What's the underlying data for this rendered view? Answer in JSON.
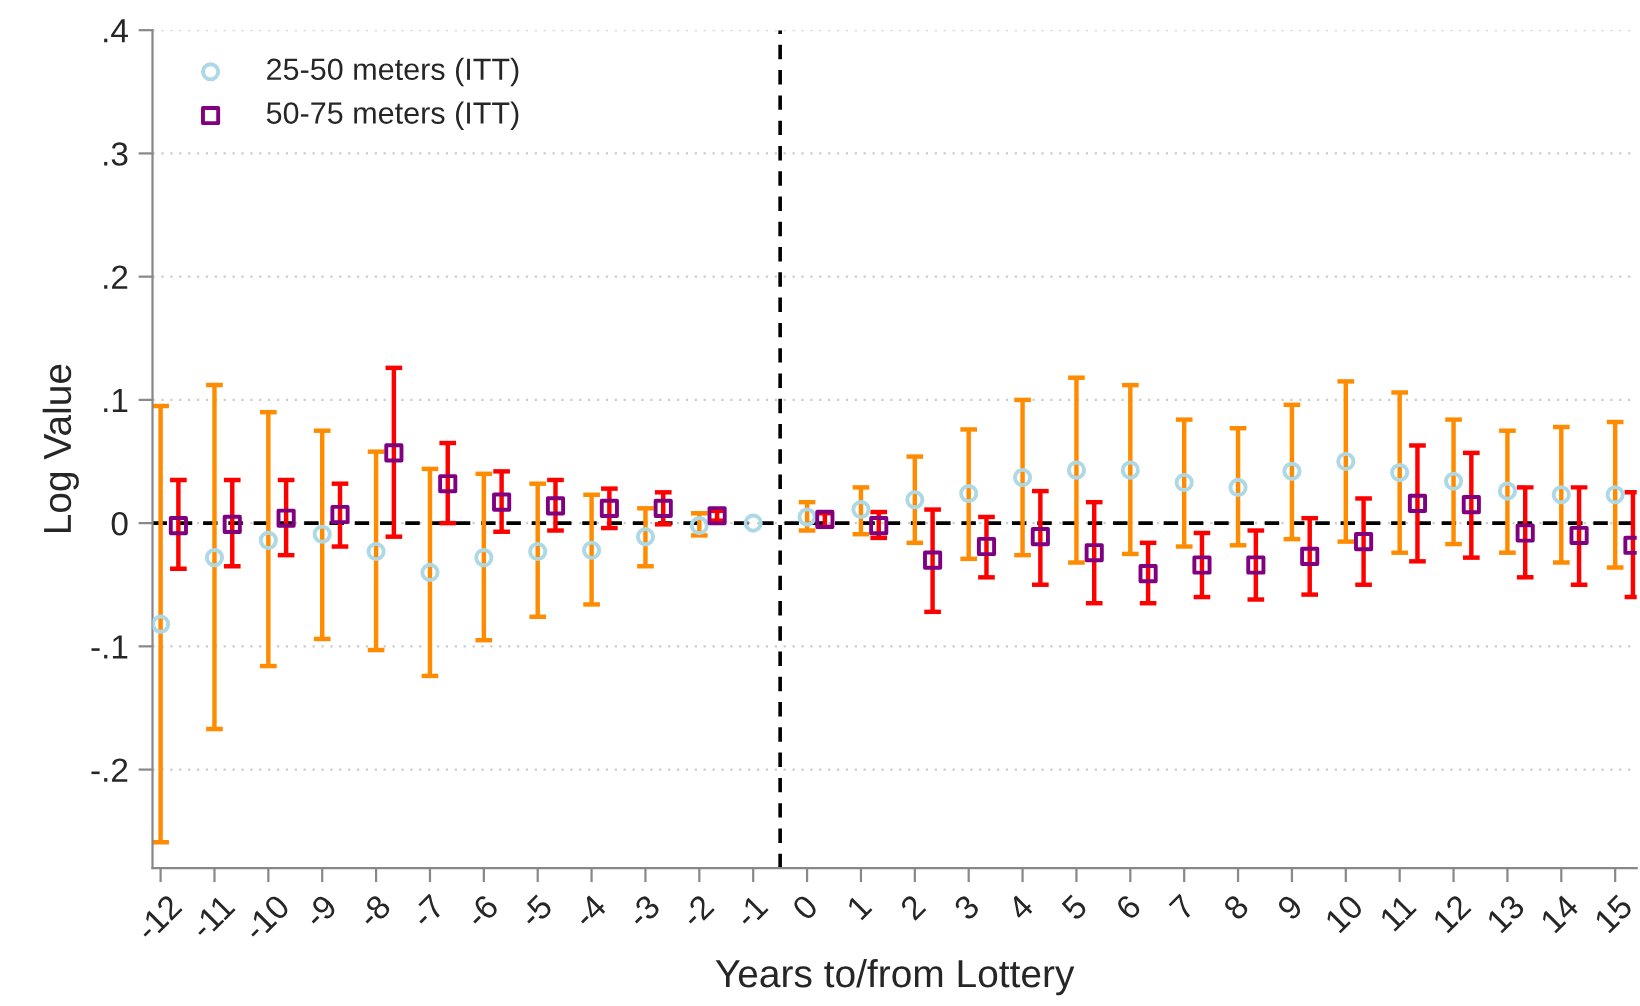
{
  "chart_data": {
    "type": "scatter",
    "xlabel": "Years to/from Lottery",
    "ylabel": "Log Value",
    "xlim": [
      -12.15,
      15.4
    ],
    "ylim": [
      -0.28,
      0.4
    ],
    "xticks": [
      -12,
      -11,
      -10,
      -9,
      -8,
      -7,
      -6,
      -5,
      -4,
      -3,
      -2,
      -1,
      0,
      1,
      2,
      3,
      4,
      5,
      6,
      7,
      8,
      9,
      10,
      11,
      12,
      13,
      14,
      15
    ],
    "yticks": [
      {
        "value": 0.4,
        "label": ".4"
      },
      {
        "value": 0.3,
        "label": ".3"
      },
      {
        "value": 0.2,
        "label": ".2"
      },
      {
        "value": 0.1,
        "label": ".1"
      },
      {
        "value": 0,
        "label": "0"
      },
      {
        "value": -0.1,
        "label": "-.1"
      },
      {
        "value": -0.2,
        "label": "-.2"
      }
    ],
    "grid": "y",
    "legend": "top left",
    "ref_lines": [
      {
        "axis": "y",
        "value": 0,
        "color": "#000000",
        "line_style": "dashed"
      },
      {
        "axis": "x",
        "value": -0.5,
        "color": "#000000",
        "line_style": "dashed"
      }
    ],
    "series": [
      {
        "name": "25-50 meters (ITT)",
        "color": "#add8e6",
        "marker": "circle",
        "x": [
          -12,
          -11,
          -10,
          -9,
          -8,
          -7,
          -6,
          -5,
          -4,
          -3,
          -2,
          -1,
          0,
          1,
          2,
          3,
          4,
          5,
          6,
          7,
          8,
          9,
          10,
          11,
          12,
          13,
          14,
          15
        ],
        "values": [
          -0.082,
          -0.028,
          -0.014,
          -0.009,
          -0.023,
          -0.04,
          -0.028,
          -0.023,
          -0.022,
          -0.011,
          -0.002,
          0,
          0.005,
          0.011,
          0.019,
          0.024,
          0.037,
          0.043,
          0.043,
          0.033,
          0.029,
          0.042,
          0.05,
          0.041,
          0.034,
          0.026,
          0.023,
          0.023
        ],
        "errors": [
          [
            -0.259,
            0.095
          ],
          [
            -0.167,
            0.112
          ],
          [
            -0.116,
            0.09
          ],
          [
            -0.094,
            0.075
          ],
          [
            -0.103,
            0.058
          ],
          [
            -0.124,
            0.044
          ],
          [
            -0.095,
            0.04
          ],
          [
            -0.076,
            0.032
          ],
          [
            -0.066,
            0.023
          ],
          [
            -0.035,
            0.012
          ],
          [
            -0.01,
            0.008
          ],
          null,
          [
            -0.006,
            0.017
          ],
          [
            -0.009,
            0.029
          ],
          [
            -0.016,
            0.054
          ],
          [
            -0.029,
            0.076
          ],
          [
            -0.026,
            0.1
          ],
          [
            -0.032,
            0.118
          ],
          [
            -0.025,
            0.112
          ],
          [
            -0.019,
            0.084
          ],
          [
            -0.018,
            0.077
          ],
          [
            -0.013,
            0.096
          ],
          [
            -0.015,
            0.115
          ],
          [
            -0.024,
            0.106
          ],
          [
            -0.017,
            0.084
          ],
          [
            -0.024,
            0.075
          ],
          [
            -0.032,
            0.078
          ],
          [
            -0.036,
            0.082
          ]
        ]
      },
      {
        "name": "50-75 meters (ITT)",
        "color": "#800080",
        "marker": "square",
        "x": [
          -11.67,
          -10.67,
          -9.67,
          -8.67,
          -7.67,
          -6.67,
          -5.67,
          -4.67,
          -3.67,
          -2.67,
          -1.67,
          -0.67,
          0.33,
          1.33,
          2.33,
          3.33,
          4.33,
          5.33,
          6.33,
          7.33,
          8.33,
          9.33,
          10.33,
          11.33,
          12.33,
          13.33,
          14.33,
          15.33
        ],
        "values": [
          -0.002,
          -0.001,
          0.004,
          0.007,
          0.057,
          0.032,
          0.017,
          0.014,
          0.012,
          0.012,
          0.006,
          null,
          0.003,
          -0.002,
          -0.03,
          -0.019,
          -0.011,
          -0.024,
          -0.041,
          -0.034,
          -0.034,
          -0.027,
          -0.015,
          0.016,
          0.015,
          -0.008,
          -0.01,
          -0.018
        ],
        "errors": [
          [
            -0.037,
            0.035
          ],
          [
            -0.035,
            0.035
          ],
          [
            -0.026,
            0.035
          ],
          [
            -0.019,
            0.032
          ],
          [
            -0.011,
            0.126
          ],
          [
            0,
            0.065
          ],
          [
            -0.007,
            0.042
          ],
          [
            -0.006,
            0.035
          ],
          [
            -0.004,
            0.028
          ],
          [
            -0.001,
            0.025
          ],
          [
            0.002,
            0.01
          ],
          null,
          [
            -0.003,
            0.008
          ],
          [
            -0.012,
            0.009
          ],
          [
            -0.072,
            0.011
          ],
          [
            -0.044,
            0.005
          ],
          [
            -0.05,
            0.026
          ],
          [
            -0.065,
            0.017
          ],
          [
            -0.065,
            -0.016
          ],
          [
            -0.06,
            -0.008
          ],
          [
            -0.062,
            -0.006
          ],
          [
            -0.058,
            0.004
          ],
          [
            -0.05,
            0.02
          ],
          [
            -0.031,
            0.063
          ],
          [
            -0.028,
            0.057
          ],
          [
            -0.044,
            0.029
          ],
          [
            -0.05,
            0.029
          ],
          [
            -0.06,
            0.025
          ]
        ]
      }
    ]
  }
}
